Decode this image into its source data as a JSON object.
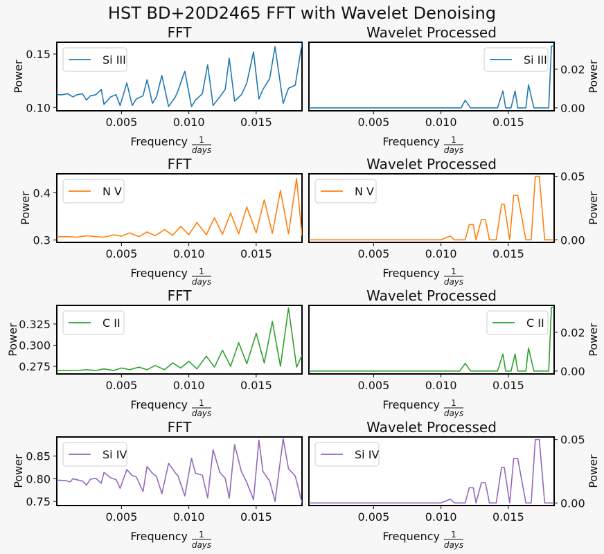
{
  "title": "HST BD+20D2465 FFT with Wavelet Denoising",
  "xlabel_prefix": "Frequency",
  "xlabel_frac_num": "1",
  "xlabel_frac_den": "days",
  "ylabel": "Power",
  "chart_data": [
    {
      "type": "line",
      "title": "FFT",
      "series": [
        {
          "name": "Si III",
          "color": "#1f77b4"
        }
      ],
      "legend": "top-left",
      "ylabel": "Power",
      "xlim": [
        0.0002,
        0.0184
      ],
      "ylim": [
        0.097,
        0.161
      ],
      "yticks": [
        {
          "v": 0.1,
          "label": "0.10"
        },
        {
          "v": 0.15,
          "label": "0.15"
        }
      ],
      "x": [
        0.0002,
        0.0006,
        0.001,
        0.0014,
        0.0017,
        0.0021,
        0.0024,
        0.0027,
        0.0031,
        0.0035,
        0.0037,
        0.0042,
        0.0046,
        0.0049,
        0.0054,
        0.0058,
        0.0061,
        0.0066,
        0.0069,
        0.0073,
        0.0076,
        0.008,
        0.0085,
        0.009,
        0.0092,
        0.0097,
        0.0102,
        0.0105,
        0.011,
        0.0114,
        0.0118,
        0.0123,
        0.0127,
        0.013,
        0.0134,
        0.0139,
        0.0143,
        0.0148,
        0.0152,
        0.0155,
        0.016,
        0.0164,
        0.017,
        0.0174,
        0.0179,
        0.0184
      ],
      "values": [
        0.112,
        0.112,
        0.113,
        0.11,
        0.112,
        0.113,
        0.107,
        0.111,
        0.112,
        0.117,
        0.103,
        0.11,
        0.112,
        0.102,
        0.123,
        0.102,
        0.108,
        0.111,
        0.126,
        0.104,
        0.11,
        0.13,
        0.101,
        0.11,
        0.116,
        0.134,
        0.101,
        0.107,
        0.113,
        0.14,
        0.102,
        0.11,
        0.117,
        0.146,
        0.106,
        0.112,
        0.123,
        0.152,
        0.108,
        0.117,
        0.127,
        0.157,
        0.104,
        0.118,
        0.121,
        0.16
      ]
    },
    {
      "type": "line",
      "title": "Wavelet Processed",
      "series": [
        {
          "name": "Si III",
          "color": "#1f77b4"
        }
      ],
      "legend": "top-right",
      "ylabel": "Power",
      "ylabel_side": "right",
      "xlim": [
        0.0002,
        0.0184
      ],
      "ylim": [
        -0.0015,
        0.034
      ],
      "yticks": [
        {
          "v": 0.0,
          "label": "0.00"
        },
        {
          "v": 0.02,
          "label": "0.02"
        }
      ],
      "x": [
        0.0002,
        0.005,
        0.0108,
        0.0115,
        0.0118,
        0.0122,
        0.0138,
        0.0142,
        0.0146,
        0.0148,
        0.0152,
        0.0155,
        0.0157,
        0.0163,
        0.0165,
        0.0169,
        0.0172,
        0.0177,
        0.018,
        0.0182,
        0.0184
      ],
      "values": [
        0.0,
        0.0,
        0.0,
        0.0,
        0.004,
        0.0,
        0.0,
        0.0,
        0.0088,
        0.0,
        0.0,
        0.0088,
        0.0,
        0.0,
        0.012,
        0.0,
        0.0,
        0.0,
        0.0,
        0.032,
        0.032
      ]
    },
    {
      "type": "line",
      "title": "FFT",
      "series": [
        {
          "name": "N V",
          "color": "#ff7f0e"
        }
      ],
      "legend": "top-left",
      "ylabel": "Power",
      "xlim": [
        0.0002,
        0.0184
      ],
      "ylim": [
        0.295,
        0.44
      ],
      "yticks": [
        {
          "v": 0.3,
          "label": "0.3"
        },
        {
          "v": 0.4,
          "label": "0.4"
        }
      ],
      "x": [
        0.0002,
        0.001,
        0.0017,
        0.0024,
        0.0031,
        0.0037,
        0.0044,
        0.005,
        0.0056,
        0.0063,
        0.0069,
        0.0075,
        0.0082,
        0.0088,
        0.0094,
        0.01,
        0.0106,
        0.0113,
        0.0119,
        0.0125,
        0.0131,
        0.0137,
        0.0143,
        0.015,
        0.0156,
        0.0162,
        0.0168,
        0.0174,
        0.018,
        0.0184
      ],
      "values": [
        0.307,
        0.307,
        0.306,
        0.309,
        0.307,
        0.306,
        0.311,
        0.308,
        0.315,
        0.307,
        0.317,
        0.309,
        0.322,
        0.31,
        0.329,
        0.311,
        0.337,
        0.311,
        0.347,
        0.312,
        0.357,
        0.313,
        0.37,
        0.315,
        0.385,
        0.314,
        0.405,
        0.313,
        0.43,
        0.309
      ]
    },
    {
      "type": "line",
      "title": "Wavelet Processed",
      "series": [
        {
          "name": "N V",
          "color": "#ff7f0e"
        }
      ],
      "legend": "top-left",
      "ylabel": "Power",
      "ylabel_side": "right",
      "xlim": [
        0.0002,
        0.0184
      ],
      "ylim": [
        -0.002,
        0.052
      ],
      "yticks": [
        {
          "v": 0.0,
          "label": "0.00"
        },
        {
          "v": 0.05,
          "label": "0.05"
        }
      ],
      "x": [
        0.0002,
        0.01,
        0.0107,
        0.011,
        0.0118,
        0.0121,
        0.0124,
        0.0126,
        0.013,
        0.0133,
        0.0136,
        0.0141,
        0.0145,
        0.0147,
        0.0151,
        0.0154,
        0.0157,
        0.0163,
        0.0167,
        0.017,
        0.0173,
        0.0177,
        0.0184
      ],
      "values": [
        0.0,
        0.0,
        0.003,
        0.0,
        0.0,
        0.012,
        0.012,
        0.0,
        0.016,
        0.016,
        0.0,
        0.0,
        0.028,
        0.028,
        0.0,
        0.035,
        0.035,
        0.0,
        0.0,
        0.05,
        0.05,
        0.0,
        0.0
      ]
    },
    {
      "type": "line",
      "title": "FFT",
      "series": [
        {
          "name": "C II",
          "color": "#2ca02c"
        }
      ],
      "legend": "top-left",
      "ylabel": "Power",
      "xlim": [
        0.0002,
        0.0184
      ],
      "ylim": [
        0.266,
        0.347
      ],
      "yticks": [
        {
          "v": 0.275,
          "label": "0.275"
        },
        {
          "v": 0.3,
          "label": "0.300"
        },
        {
          "v": 0.325,
          "label": "0.325"
        }
      ],
      "x": [
        0.0002,
        0.001,
        0.0017,
        0.0024,
        0.0031,
        0.0037,
        0.0044,
        0.005,
        0.0056,
        0.0063,
        0.0069,
        0.0075,
        0.0082,
        0.0088,
        0.0094,
        0.01,
        0.0106,
        0.0113,
        0.0119,
        0.0125,
        0.0131,
        0.0137,
        0.0143,
        0.015,
        0.0156,
        0.0162,
        0.0168,
        0.0174,
        0.018,
        0.0184
      ],
      "values": [
        0.27,
        0.27,
        0.27,
        0.271,
        0.27,
        0.272,
        0.27,
        0.273,
        0.271,
        0.274,
        0.271,
        0.276,
        0.271,
        0.279,
        0.273,
        0.281,
        0.272,
        0.287,
        0.274,
        0.294,
        0.275,
        0.303,
        0.278,
        0.314,
        0.279,
        0.328,
        0.275,
        0.344,
        0.274,
        0.288
      ]
    },
    {
      "type": "line",
      "title": "Wavelet Processed",
      "series": [
        {
          "name": "C II",
          "color": "#2ca02c"
        }
      ],
      "legend": "top-right",
      "ylabel": "Power",
      "ylabel_side": "right",
      "xlim": [
        0.0002,
        0.0184
      ],
      "ylim": [
        -0.0015,
        0.034
      ],
      "yticks": [
        {
          "v": 0.0,
          "label": "0.00"
        },
        {
          "v": 0.02,
          "label": "0.02"
        }
      ],
      "x": [
        0.0002,
        0.009,
        0.01,
        0.0114,
        0.0118,
        0.0122,
        0.0138,
        0.0142,
        0.0146,
        0.0148,
        0.0152,
        0.0155,
        0.0157,
        0.0163,
        0.0165,
        0.0169,
        0.0172,
        0.0177,
        0.018,
        0.0182,
        0.0184
      ],
      "values": [
        0.0,
        0.0,
        0.0,
        0.0,
        0.004,
        0.0,
        0.0,
        0.0,
        0.0088,
        0.0,
        0.0,
        0.0088,
        0.0,
        0.0,
        0.012,
        0.0,
        0.0,
        0.0,
        0.0,
        0.033,
        0.033
      ]
    },
    {
      "type": "line",
      "title": "FFT",
      "series": [
        {
          "name": "Si IV",
          "color": "#9467bd"
        }
      ],
      "legend": "top-left",
      "ylabel": "Power",
      "xlim": [
        0.0002,
        0.0184
      ],
      "ylim": [
        0.741,
        0.892
      ],
      "yticks": [
        {
          "v": 0.75,
          "label": "0.75"
        },
        {
          "v": 0.8,
          "label": "0.80"
        },
        {
          "v": 0.85,
          "label": "0.85"
        }
      ],
      "x": [
        0.0002,
        0.0008,
        0.0012,
        0.0014,
        0.0018,
        0.0021,
        0.0024,
        0.0027,
        0.0031,
        0.0035,
        0.0037,
        0.0042,
        0.0046,
        0.0049,
        0.0054,
        0.0058,
        0.0061,
        0.0066,
        0.0069,
        0.0073,
        0.0076,
        0.008,
        0.0085,
        0.009,
        0.0092,
        0.0097,
        0.0102,
        0.0105,
        0.011,
        0.0114,
        0.0118,
        0.0123,
        0.0127,
        0.013,
        0.0134,
        0.0139,
        0.0143,
        0.0148,
        0.0152,
        0.0155,
        0.016,
        0.0164,
        0.017,
        0.0174,
        0.0179,
        0.0184
      ],
      "values": [
        0.797,
        0.796,
        0.793,
        0.8,
        0.797,
        0.795,
        0.786,
        0.799,
        0.801,
        0.79,
        0.814,
        0.802,
        0.798,
        0.779,
        0.82,
        0.807,
        0.804,
        0.772,
        0.827,
        0.812,
        0.805,
        0.767,
        0.834,
        0.813,
        0.806,
        0.762,
        0.845,
        0.812,
        0.808,
        0.758,
        0.864,
        0.814,
        0.801,
        0.757,
        0.875,
        0.816,
        0.792,
        0.754,
        0.885,
        0.816,
        0.795,
        0.75,
        0.888,
        0.822,
        0.806,
        0.747
      ]
    },
    {
      "type": "line",
      "title": "Wavelet Processed",
      "series": [
        {
          "name": "Si IV",
          "color": "#9467bd"
        }
      ],
      "legend": "top-left",
      "ylabel": "Power",
      "ylabel_side": "right",
      "xlim": [
        0.0002,
        0.0184
      ],
      "ylim": [
        -0.002,
        0.052
      ],
      "yticks": [
        {
          "v": 0.0,
          "label": "0.00"
        },
        {
          "v": 0.05,
          "label": "0.05"
        }
      ],
      "x": [
        0.0002,
        0.01,
        0.0107,
        0.011,
        0.0118,
        0.0121,
        0.0124,
        0.0126,
        0.013,
        0.0133,
        0.0136,
        0.0141,
        0.0145,
        0.0147,
        0.0151,
        0.0154,
        0.0157,
        0.0163,
        0.0167,
        0.017,
        0.0173,
        0.0177,
        0.0184
      ],
      "values": [
        0.0,
        0.0,
        0.003,
        0.0,
        0.0,
        0.012,
        0.012,
        0.0,
        0.016,
        0.016,
        0.0,
        0.0,
        0.028,
        0.028,
        0.0,
        0.035,
        0.035,
        0.0,
        0.0,
        0.05,
        0.05,
        0.0,
        0.0
      ]
    }
  ],
  "xticks": [
    {
      "v": 0.005,
      "label": "0.005"
    },
    {
      "v": 0.01,
      "label": "0.010"
    },
    {
      "v": 0.015,
      "label": "0.015"
    }
  ]
}
